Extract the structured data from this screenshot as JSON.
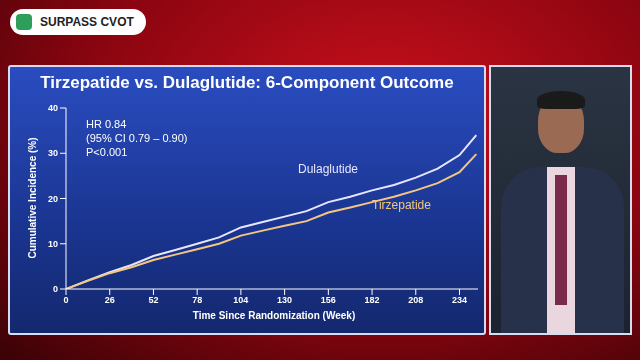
{
  "header": {
    "badge": "SURPASS CVOT"
  },
  "chart_data": {
    "type": "line",
    "title": "Tirzepatide vs. Dulaglutide: 6-Component Outcome",
    "annotations": [
      "HR 0.84",
      "(95% CI 0.79 – 0.90)",
      "P<0.001"
    ],
    "x_label": "Time Since Randomization (Week)",
    "y_label": "Cumulative Incidence (%)",
    "x": [
      0,
      13,
      26,
      39,
      52,
      65,
      78,
      91,
      104,
      117,
      130,
      143,
      156,
      169,
      182,
      195,
      208,
      221,
      234,
      244
    ],
    "series": [
      {
        "name": "Dulaglutide",
        "color": "#e6e6ff",
        "values": [
          0,
          1.9,
          3.7,
          5.3,
          7.3,
          8.6,
          10.0,
          11.4,
          13.6,
          14.8,
          16.0,
          17.2,
          19.2,
          20.4,
          21.8,
          23.0,
          24.6,
          26.6,
          29.6,
          34.0
        ]
      },
      {
        "name": "Tirzepatide",
        "color": "#f5c77e",
        "values": [
          0,
          1.8,
          3.5,
          4.8,
          6.4,
          7.6,
          8.8,
          10.0,
          11.8,
          12.9,
          14.0,
          15.0,
          16.9,
          18.0,
          19.2,
          20.4,
          21.8,
          23.4,
          25.8,
          29.8
        ]
      }
    ],
    "xlim": [
      0,
      245
    ],
    "xticks": [
      0,
      26,
      52,
      78,
      104,
      130,
      156,
      182,
      208,
      234
    ],
    "ylim": [
      0,
      40
    ],
    "yticks": [
      0,
      10,
      20,
      30,
      40
    ],
    "grid": false
  }
}
